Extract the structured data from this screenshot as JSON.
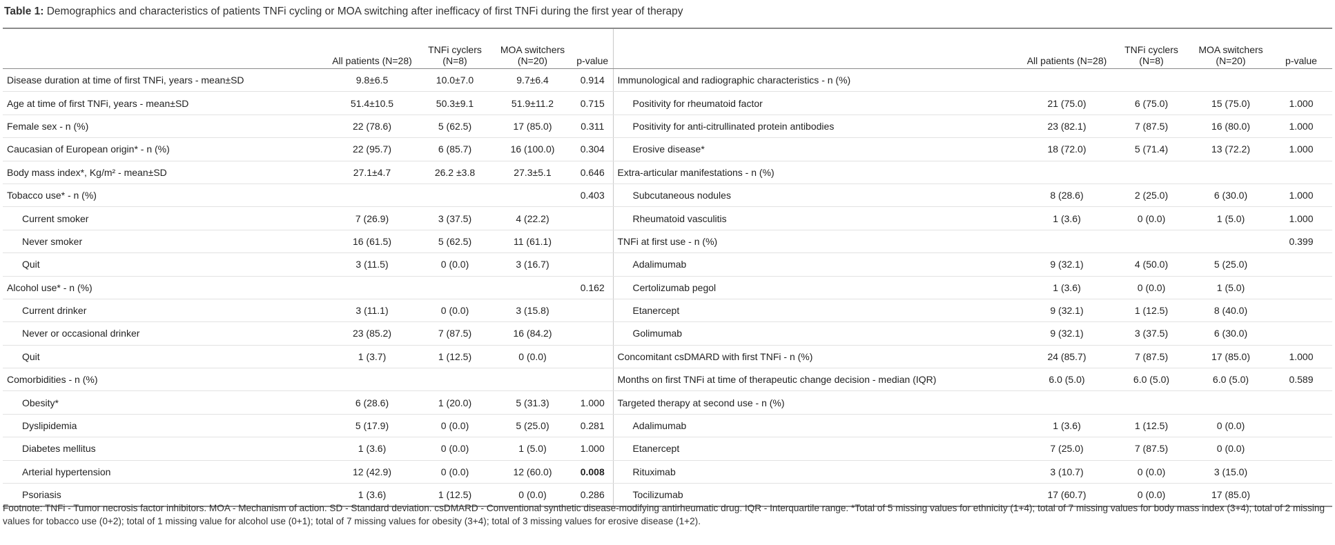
{
  "title": {
    "label": "Table 1:",
    "text": "Demographics and characteristics of patients TNFi cycling or MOA switching after inefficacy of first TNFi during the first year of therapy"
  },
  "columns": [
    "All patients (N=28)",
    "TNFi cyclers (N=8)",
    "MOA switchers (N=20)",
    "p-value"
  ],
  "left": [
    {
      "label": "Disease duration at time of first TNFi, years - mean±SD",
      "values": [
        "9.8±6.5",
        "10.0±7.0",
        "9.7±6.4",
        "0.914"
      ]
    },
    {
      "label": "Age at time of first TNFi, years - mean±SD",
      "values": [
        "51.4±10.5",
        "50.3±9.1",
        "51.9±11.2",
        "0.715"
      ]
    },
    {
      "label": "Female sex - n (%)",
      "values": [
        "22 (78.6)",
        "5 (62.5)",
        "17 (85.0)",
        "0.311"
      ]
    },
    {
      "label": "Caucasian of European origin* - n (%)",
      "values": [
        "22 (95.7)",
        "6 (85.7)",
        "16 (100.0)",
        "0.304"
      ]
    },
    {
      "label": "Body mass index*, Kg/m² - mean±SD",
      "values": [
        "27.1±4.7",
        "26.2 ±3.8",
        "27.3±5.1",
        "0.646"
      ]
    },
    {
      "label": "Tobacco use* - n (%)",
      "p": "0.403",
      "rows": [
        {
          "label": "Current smoker",
          "values": [
            "7 (26.9)",
            "3 (37.5)",
            "4 (22.2)"
          ]
        },
        {
          "label": "Never smoker",
          "values": [
            "16 (61.5)",
            "5 (62.5)",
            "11 (61.1)"
          ]
        },
        {
          "label": "Quit",
          "values": [
            "3 (11.5)",
            "0 (0.0)",
            "3 (16.7)"
          ]
        }
      ]
    },
    {
      "label": "Alcohol use* - n (%)",
      "p": "0.162",
      "rows": [
        {
          "label": "Current drinker",
          "values": [
            "3 (11.1)",
            "0 (0.0)",
            "3 (15.8)"
          ]
        },
        {
          "label": "Never or occasional drinker",
          "values": [
            "23 (85.2)",
            "7 (87.5)",
            "16 (84.2)"
          ]
        },
        {
          "label": "Quit",
          "values": [
            "1 (3.7)",
            "1 (12.5)",
            "0 (0.0)"
          ]
        }
      ]
    },
    {
      "label": "Comorbidities - n (%)",
      "rows": [
        {
          "label": "Obesity*",
          "values": [
            "6 (28.6)",
            "1 (20.0)",
            "5 (31.3)",
            "1.000"
          ]
        },
        {
          "label": "Dyslipidemia",
          "values": [
            "5 (17.9)",
            "0 (0.0)",
            "5 (25.0)",
            "0.281"
          ]
        },
        {
          "label": "Diabetes mellitus",
          "values": [
            "1 (3.6)",
            "0 (0.0)",
            "1 (5.0)",
            "1.000"
          ]
        },
        {
          "label": "Arterial hypertension",
          "values": [
            "12 (42.9)",
            "0 (0.0)",
            "12 (60.0)",
            "0.008"
          ],
          "p_bold": true
        },
        {
          "label": "Psoriasis",
          "values": [
            "1 (3.6)",
            "1 (12.5)",
            "0 (0.0)",
            "0.286"
          ]
        }
      ]
    }
  ],
  "right": [
    {
      "label": "Immunological and radiographic characteristics - n (%)",
      "rows": [
        {
          "label": "Positivity for rheumatoid factor",
          "values": [
            "21 (75.0)",
            "6 (75.0)",
            "15 (75.0)",
            "1.000"
          ]
        },
        {
          "label": "Positivity for anti-citrullinated protein antibodies",
          "values": [
            "23 (82.1)",
            "7 (87.5)",
            "16 (80.0)",
            "1.000"
          ]
        },
        {
          "label": "Erosive disease*",
          "values": [
            "18 (72.0)",
            "5 (71.4)",
            "13 (72.2)",
            "1.000"
          ]
        }
      ]
    },
    {
      "label": "Extra-articular manifestations - n (%)",
      "rows": [
        {
          "label": "Subcutaneous nodules",
          "values": [
            "8 (28.6)",
            "2 (25.0)",
            "6 (30.0)",
            "1.000"
          ]
        },
        {
          "label": "Rheumatoid vasculitis",
          "values": [
            "1 (3.6)",
            "0 (0.0)",
            "1 (5.0)",
            "1.000"
          ]
        }
      ]
    },
    {
      "label": "TNFi at first use - n (%)",
      "p": "0.399",
      "rows": [
        {
          "label": "Adalimumab",
          "values": [
            "9 (32.1)",
            "4 (50.0)",
            "5 (25.0)"
          ]
        },
        {
          "label": "Certolizumab pegol",
          "values": [
            "1 (3.6)",
            "0 (0.0)",
            "1 (5.0)"
          ]
        },
        {
          "label": "Etanercept",
          "values": [
            "9 (32.1)",
            "1 (12.5)",
            "8 (40.0)"
          ]
        },
        {
          "label": "Golimumab",
          "values": [
            "9 (32.1)",
            "3 (37.5)",
            "6 (30.0)"
          ]
        }
      ]
    },
    {
      "label": "Concomitant csDMARD with first TNFi - n (%)",
      "values": [
        "24 (85.7)",
        "7 (87.5)",
        "17 (85.0)",
        "1.000"
      ]
    },
    {
      "label": "Months on first TNFi at time of therapeutic change decision - median (IQR)",
      "values": [
        "6.0 (5.0)",
        "6.0 (5.0)",
        "6.0 (5.0)",
        "0.589"
      ]
    },
    {
      "label": "Targeted therapy at second use - n (%)",
      "rows": [
        {
          "label": "Adalimumab",
          "values": [
            "1 (3.6)",
            "1 (12.5)",
            "0 (0.0)"
          ]
        },
        {
          "label": "Etanercept",
          "values": [
            "7 (25.0)",
            "7 (87.5)",
            "0 (0.0)"
          ]
        },
        {
          "label": "Rituximab",
          "values": [
            "3 (10.7)",
            "0 (0.0)",
            "3 (15.0)"
          ]
        },
        {
          "label": "Tocilizumab",
          "values": [
            "17 (60.7)",
            "0 (0.0)",
            "17 (85.0)"
          ]
        }
      ]
    }
  ],
  "footnote": "Footnote: TNFi - Tumor necrosis factor inhibitors. MOA - Mechanism of action. SD - Standard deviation. csDMARD - Conventional synthetic disease-modifying antirheumatic drug. IQR - Interquartile range. *Total of 5 missing values for ethnicity (1+4); total of 7 missing values for body mass index (3+4); total of 2 missing values for tobacco use (0+2); total of 1 missing value for alcohol use (0+1); total of 7 missing values for obesity (3+4); total of 3 missing values for erosive disease (1+2)."
}
